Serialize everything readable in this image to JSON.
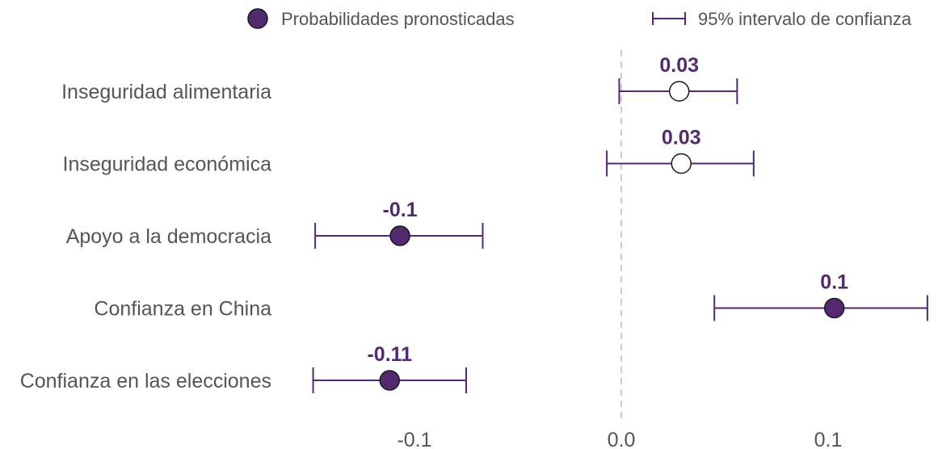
{
  "chart_data": {
    "type": "scatter",
    "title": "",
    "xlabel": "",
    "ylabel": "",
    "xlim": [
      -0.15,
      0.15
    ],
    "xticks": [
      -0.1,
      0.0,
      0.1
    ],
    "xtick_labels": [
      "-0.1",
      "0.0",
      "0.1"
    ],
    "reference_line_x": 0,
    "legend": {
      "placement": "top",
      "entries": [
        {
          "label": "Probabilidades pronosticadas",
          "symbol": "filled-circle"
        },
        {
          "label": "95% intervalo de confianza",
          "symbol": "errorbar"
        }
      ]
    },
    "colors": {
      "accent": "#53296f",
      "point_stroke": "#1a1a1a",
      "open_fill": "#ffffff",
      "reference_line": "#cccccc",
      "text": "#555555"
    },
    "rows": [
      {
        "label": "Inseguridad alimentaria",
        "estimate": 0.028,
        "ci_low": -0.001,
        "ci_high": 0.056,
        "value_label": "0.03",
        "significant": false
      },
      {
        "label": "Inseguridad económica",
        "estimate": 0.029,
        "ci_low": -0.007,
        "ci_high": 0.064,
        "value_label": "0.03",
        "significant": false
      },
      {
        "label": "Apoyo a la democracia",
        "estimate": -0.107,
        "ci_low": -0.148,
        "ci_high": -0.067,
        "value_label": "-0.1",
        "significant": true
      },
      {
        "label": "Confianza en China",
        "estimate": 0.103,
        "ci_low": 0.045,
        "ci_high": 0.148,
        "value_label": "0.1",
        "significant": true
      },
      {
        "label": "Confianza en las elecciones",
        "estimate": -0.112,
        "ci_low": -0.149,
        "ci_high": -0.075,
        "value_label": "-0.11",
        "significant": true
      }
    ]
  }
}
